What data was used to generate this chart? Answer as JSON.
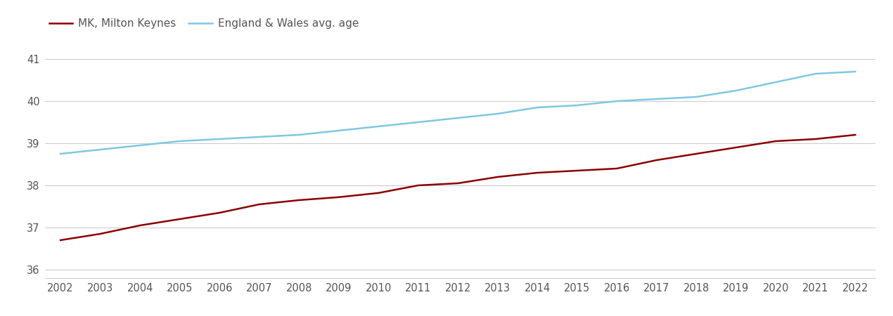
{
  "years": [
    2002,
    2003,
    2004,
    2005,
    2006,
    2007,
    2008,
    2009,
    2010,
    2011,
    2012,
    2013,
    2014,
    2015,
    2016,
    2017,
    2018,
    2019,
    2020,
    2021,
    2022
  ],
  "mk_values": [
    36.7,
    36.85,
    37.05,
    37.2,
    37.35,
    37.55,
    37.65,
    37.72,
    37.82,
    38.0,
    38.05,
    38.2,
    38.3,
    38.35,
    38.4,
    38.6,
    38.75,
    38.9,
    39.05,
    39.1,
    39.2
  ],
  "ew_values": [
    38.75,
    38.85,
    38.95,
    39.05,
    39.1,
    39.15,
    39.2,
    39.3,
    39.4,
    39.5,
    39.6,
    39.7,
    39.85,
    39.9,
    40.0,
    40.05,
    40.1,
    40.25,
    40.45,
    40.65,
    40.7
  ],
  "mk_color": "#8B0000",
  "ew_color": "#7EC8E3",
  "mk_label": "MK, Milton Keynes",
  "ew_label": "England & Wales avg. age",
  "ylim": [
    35.8,
    41.5
  ],
  "yticks": [
    36,
    37,
    38,
    39,
    40,
    41
  ],
  "xlim": [
    2001.6,
    2022.5
  ],
  "background_color": "#ffffff",
  "grid_color": "#cccccc",
  "line_width": 1.8,
  "legend_fontsize": 11,
  "tick_fontsize": 10.5,
  "tick_color": "#555555"
}
